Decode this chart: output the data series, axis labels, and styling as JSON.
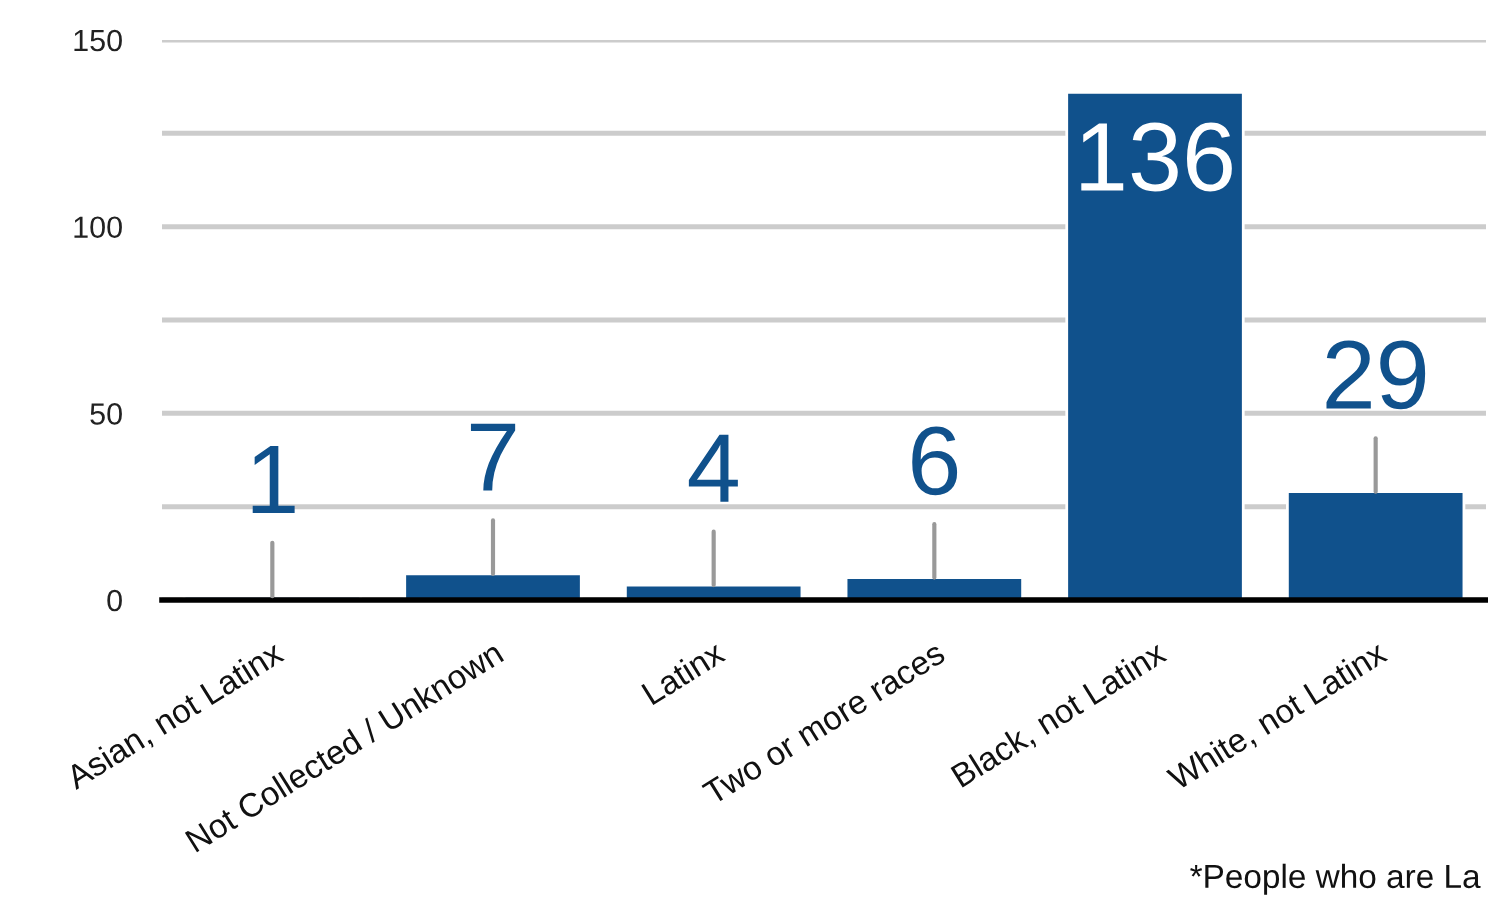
{
  "chart_data": {
    "type": "bar",
    "categories": [
      "Asian, not Latinx",
      "Not Collected / Unknown",
      "Latinx",
      "Two or more races",
      "Black, not Latinx",
      "White, not Latinx"
    ],
    "values": [
      1,
      7,
      4,
      6,
      136,
      29
    ],
    "color": "#10518c",
    "ylim": [
      0,
      150
    ],
    "yticks": [
      0,
      {
        "value": 25,
        "label": null
      },
      50,
      {
        "value": 75,
        "label": null
      },
      100,
      {
        "value": 125,
        "label": null
      },
      150
    ],
    "grid": "y",
    "data_labels": true,
    "annotations": [
      "*People who are La"
    ]
  }
}
